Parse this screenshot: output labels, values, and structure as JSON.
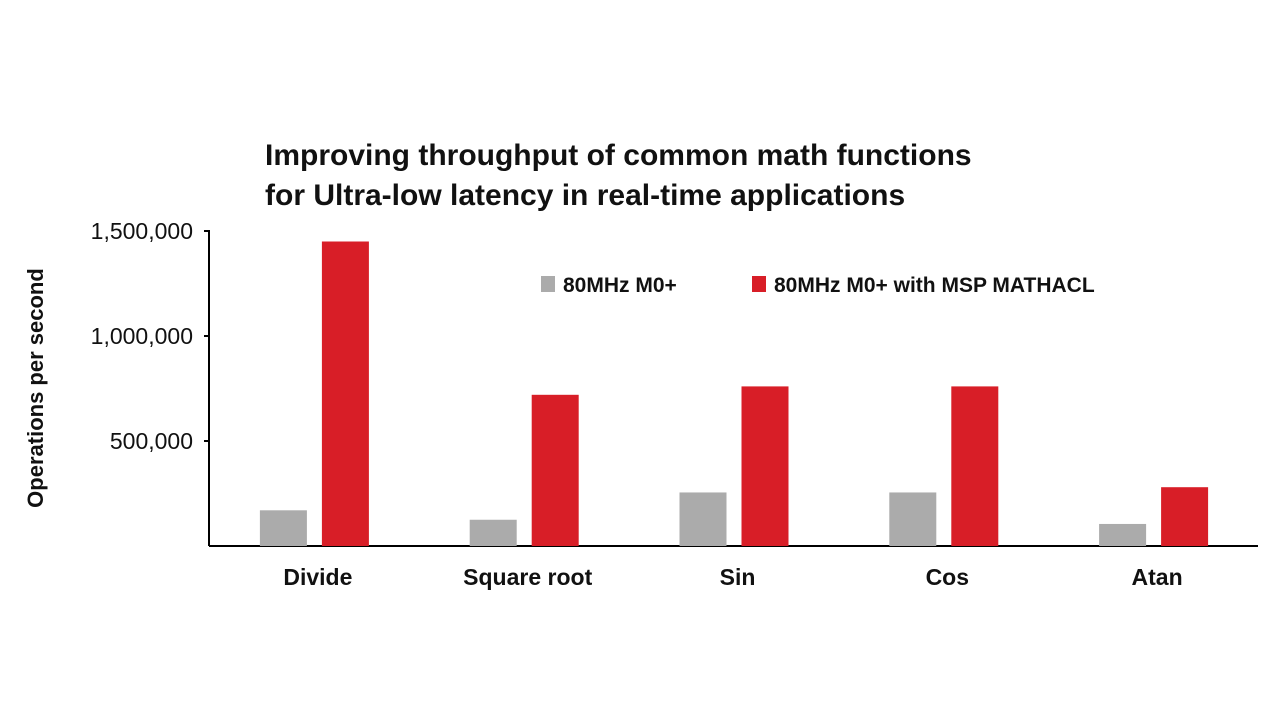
{
  "chart_data": {
    "type": "bar",
    "title_lines": [
      "Improving throughput of common math functions",
      "for Ultra-low latency in real-time applications"
    ],
    "xlabel": "",
    "ylabel": "Operations per second",
    "ylim": [
      0,
      1500000
    ],
    "yticks": [
      500000,
      1000000,
      1500000
    ],
    "ytick_labels": [
      "500,000",
      "1,000,000",
      "1,500,000"
    ],
    "categories": [
      "Divide",
      "Square root",
      "Sin",
      "Cos",
      "Atan"
    ],
    "series": [
      {
        "name": "80MHz M0+",
        "color": "#ababab",
        "values": [
          170000,
          125000,
          255000,
          255000,
          105000
        ]
      },
      {
        "name": "80MHz M0+ with MSP MATHACL",
        "color": "#d81e27",
        "values": [
          1450000,
          720000,
          760000,
          760000,
          280000
        ]
      }
    ],
    "legend": "top-right",
    "grid": false
  }
}
